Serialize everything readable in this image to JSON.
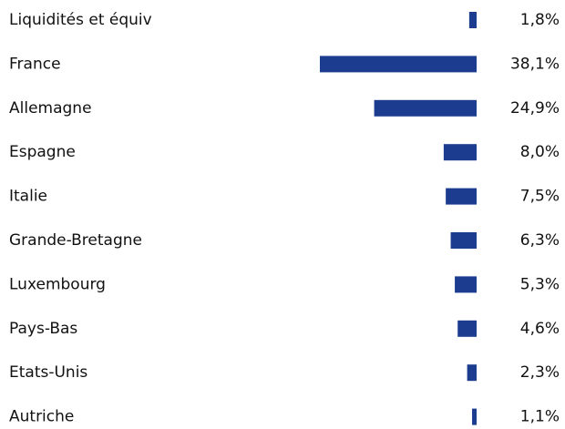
{
  "chart_data": {
    "type": "bar",
    "orientation": "horizontal",
    "categories": [
      "Liquidités et équiv",
      "France",
      "Allemagne",
      "Espagne",
      "Italie",
      "Grande-Bretagne",
      "Luxembourg",
      "Pays-Bas",
      "Etats-Unis",
      "Autriche"
    ],
    "values": [
      1.8,
      38.1,
      24.9,
      8.0,
      7.5,
      6.3,
      5.3,
      4.6,
      2.3,
      1.1
    ],
    "value_labels": [
      "1,8%",
      "38,1%",
      "24,9%",
      "8,0%",
      "7,5%",
      "6,3%",
      "5,3%",
      "4,6%",
      "2,3%",
      "1,1%"
    ],
    "color": "#1c3d8f"
  }
}
